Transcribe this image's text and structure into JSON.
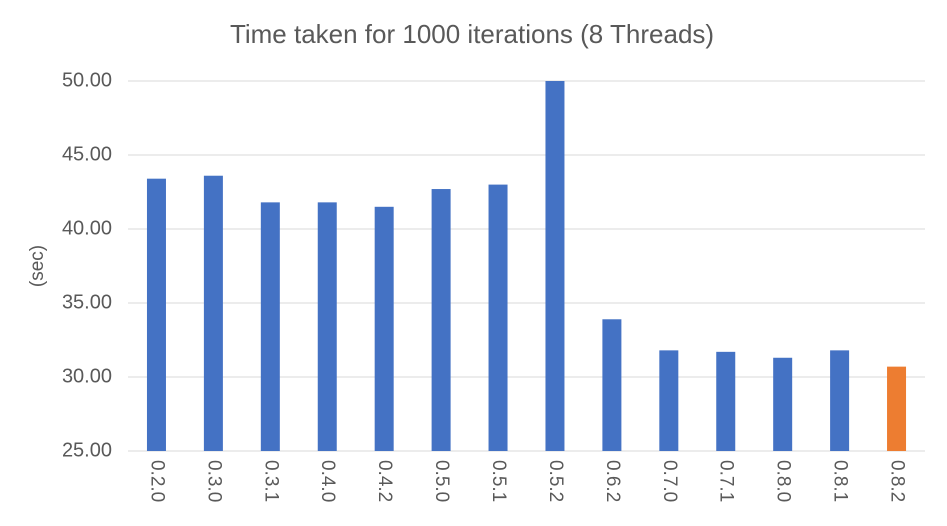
{
  "chart_data": {
    "type": "bar",
    "title": "Time taken for 1000 iterations (8 Threads)",
    "y_label": "(sec)",
    "categories": [
      "0.2.0",
      "0.3.0",
      "0.3.1",
      "0.4.0",
      "0.4.2",
      "0.5.0",
      "0.5.1",
      "0.5.2",
      "0.6.2",
      "0.7.0",
      "0.7.1",
      "0.8.0",
      "0.8.1",
      "0.8.2"
    ],
    "values": [
      43.4,
      43.6,
      41.8,
      41.8,
      41.5,
      42.7,
      43.0,
      50.0,
      33.9,
      31.8,
      31.7,
      31.3,
      31.8,
      30.7
    ],
    "colors": [
      "#4472c4",
      "#4472c4",
      "#4472c4",
      "#4472c4",
      "#4472c4",
      "#4472c4",
      "#4472c4",
      "#4472c4",
      "#4472c4",
      "#4472c4",
      "#4472c4",
      "#4472c4",
      "#4472c4",
      "#ed7d31"
    ],
    "ylim": [
      25,
      50
    ],
    "yticks": [
      {
        "value": 25,
        "label": "25.00"
      },
      {
        "value": 30,
        "label": "30.00"
      },
      {
        "value": 35,
        "label": "35.00"
      },
      {
        "value": 40,
        "label": "40.00"
      },
      {
        "value": 45,
        "label": "45.00"
      },
      {
        "value": 50,
        "label": "50.00"
      }
    ],
    "grid": true
  }
}
